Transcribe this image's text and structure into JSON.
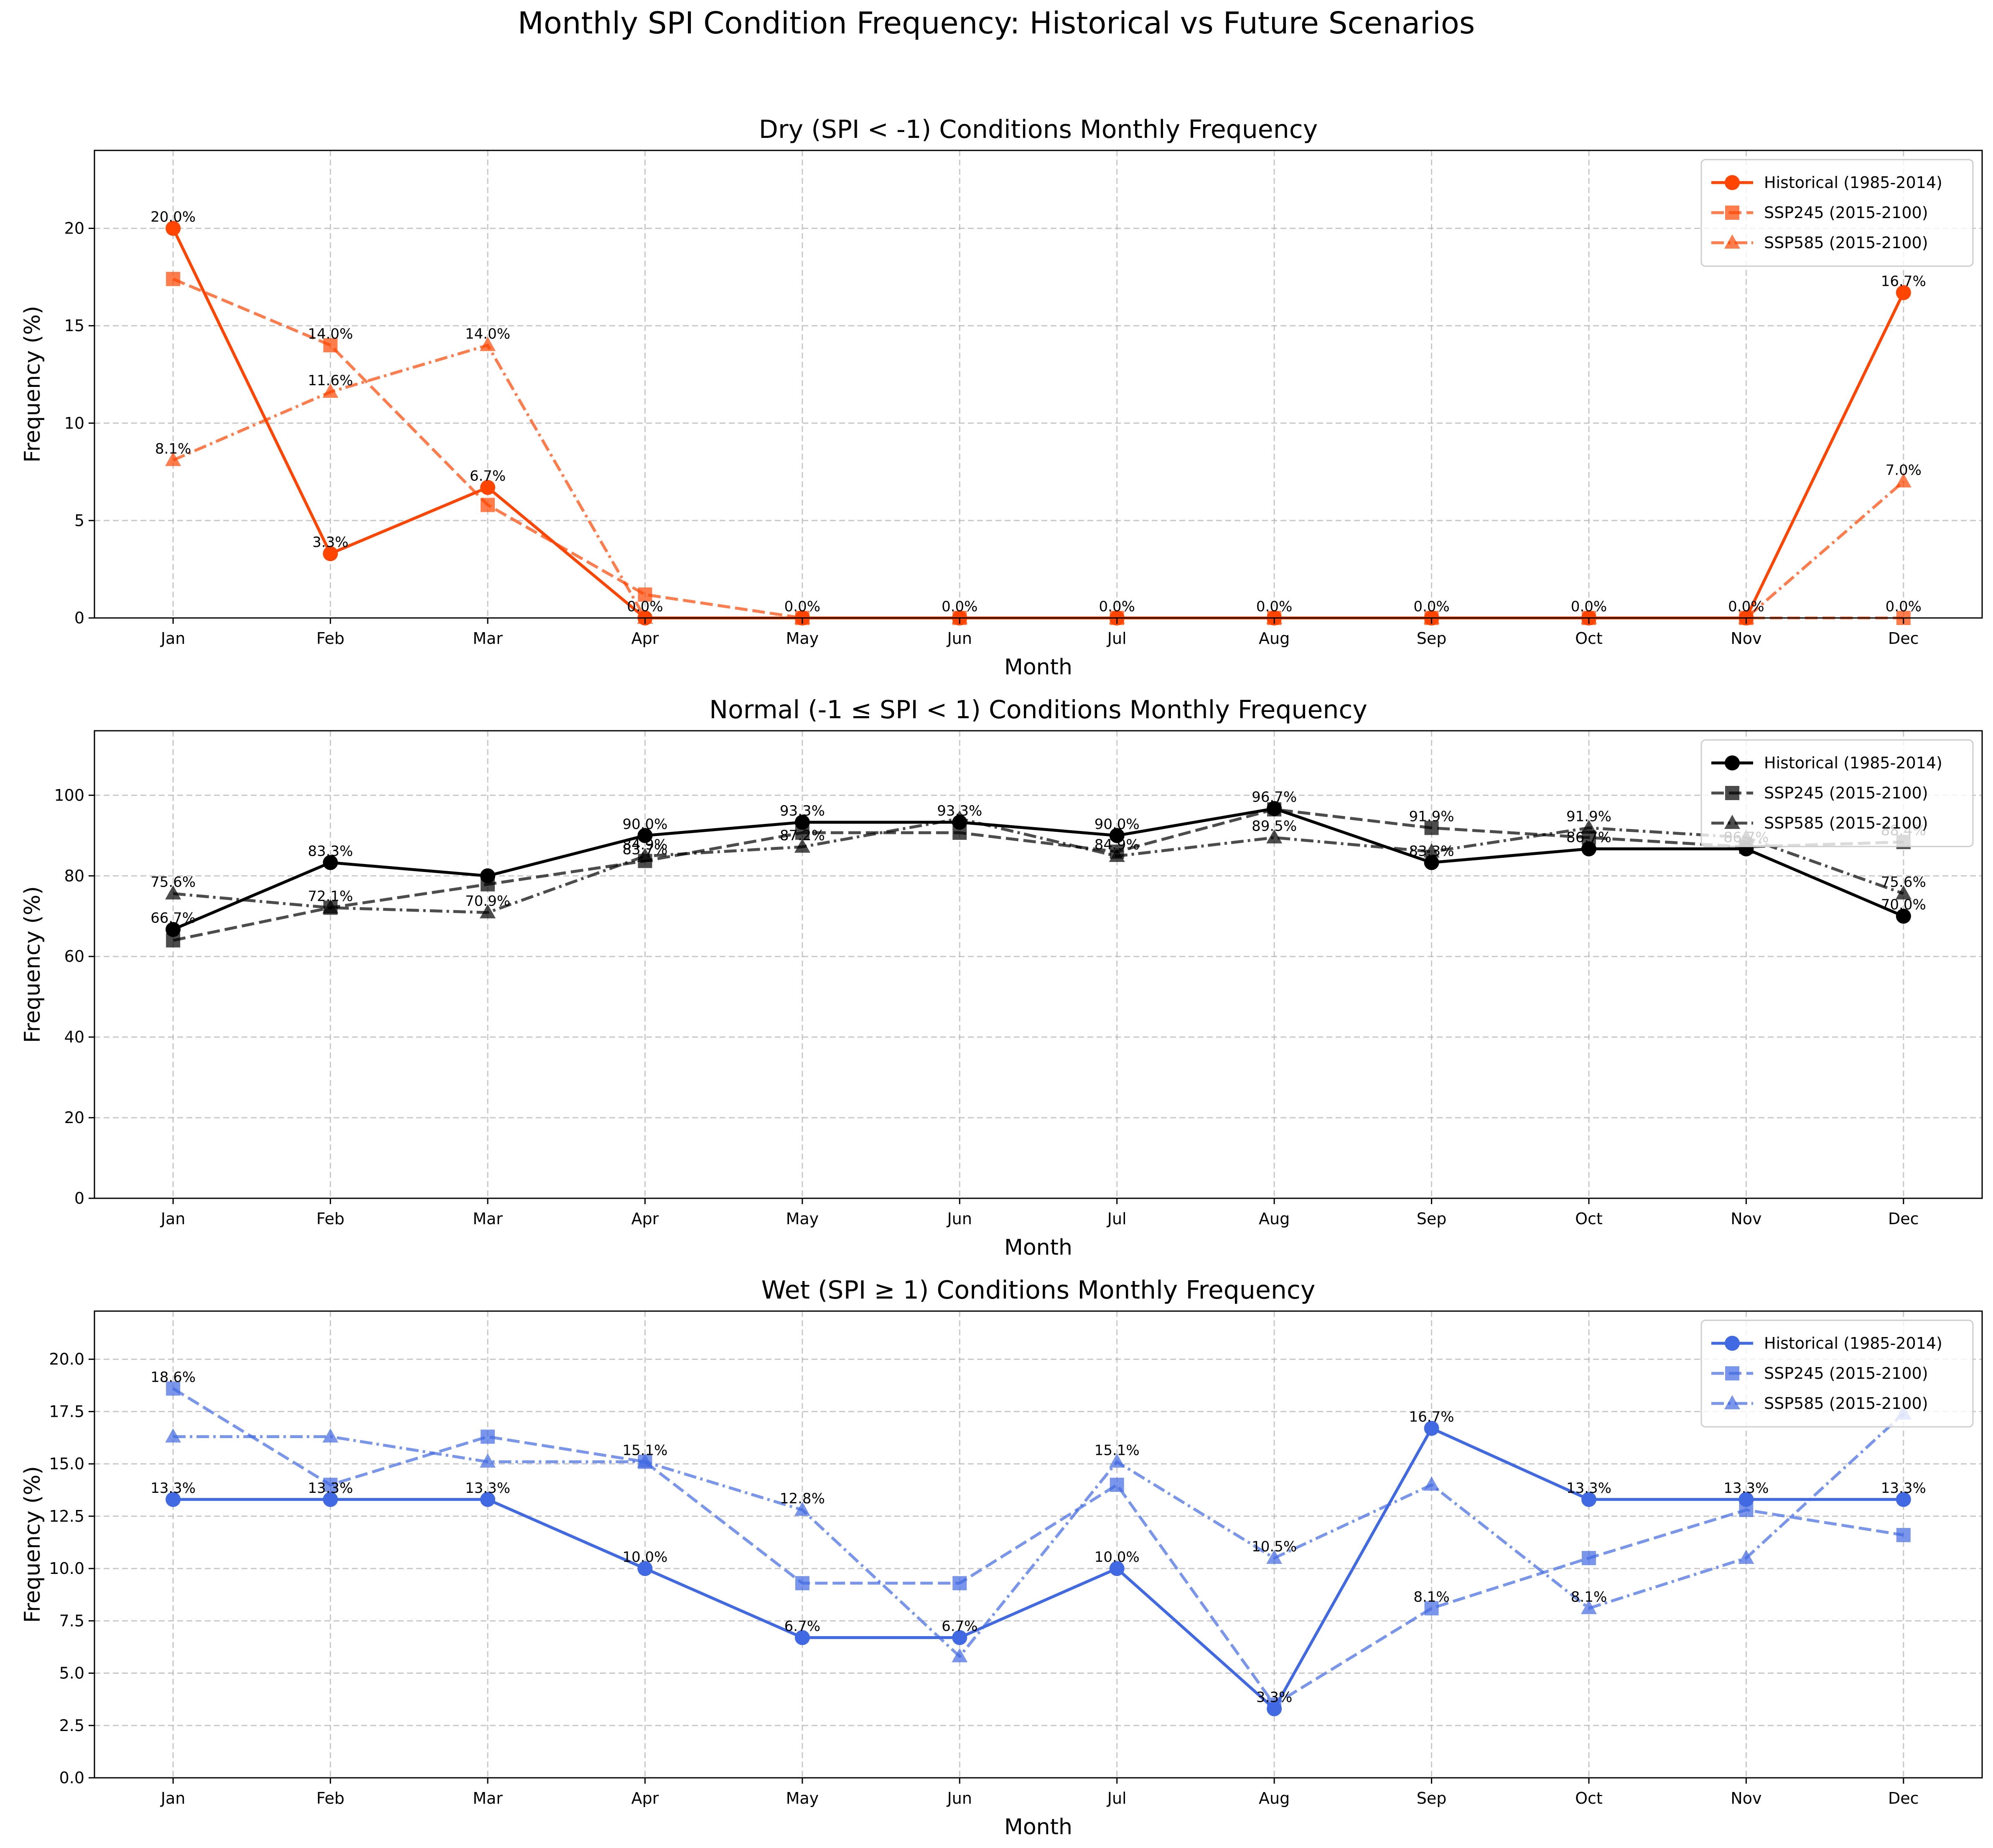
{
  "figure_title": "Monthly SPI Condition Frequency: Historical vs Future Scenarios",
  "legend_labels": [
    "Historical (1985-2014)",
    "SSP245 (2015-2100)",
    "SSP585 (2015-2100)"
  ],
  "chart_data": [
    {
      "type": "line",
      "title": "Dry (SPI < -1) Conditions Monthly Frequency",
      "xlabel": "Month",
      "ylabel": "Frequency (%)",
      "categories": [
        "Jan",
        "Feb",
        "Mar",
        "Apr",
        "May",
        "Jun",
        "Jul",
        "Aug",
        "Sep",
        "Oct",
        "Nov",
        "Dec"
      ],
      "ylim": [
        0,
        24
      ],
      "yticks": [
        0,
        5,
        10,
        15,
        20
      ],
      "ytick_labels": [
        "0",
        "5",
        "10",
        "15",
        "20"
      ],
      "grid": true,
      "legend_position": "top-right",
      "color": "#ff4500",
      "series": [
        {
          "name": "Historical (1985-2014)",
          "marker": "circle",
          "dash": "solid",
          "alpha": 1.0,
          "values": [
            20.0,
            3.3,
            6.7,
            0.0,
            0.0,
            0.0,
            0.0,
            0.0,
            0.0,
            0.0,
            0.0,
            16.7
          ]
        },
        {
          "name": "SSP245 (2015-2100)",
          "marker": "square",
          "dash": "dashed",
          "alpha": 0.7,
          "values": [
            17.4,
            14.0,
            5.8,
            1.2,
            0.0,
            0.0,
            0.0,
            0.0,
            0.0,
            0.0,
            0.0,
            0.0
          ]
        },
        {
          "name": "SSP585 (2015-2100)",
          "marker": "triangle",
          "dash": "dashdot",
          "alpha": 0.7,
          "values": [
            8.1,
            11.6,
            14.0,
            0.0,
            0.0,
            0.0,
            0.0,
            0.0,
            0.0,
            0.0,
            0.0,
            7.0
          ]
        }
      ],
      "annotations": [
        {
          "month": "Jan",
          "value": 20.0,
          "text": "20.0%"
        },
        {
          "month": "Jan",
          "value": 8.1,
          "text": "8.1%"
        },
        {
          "month": "Feb",
          "value": 14.0,
          "text": "14.0%"
        },
        {
          "month": "Feb",
          "value": 11.6,
          "text": "11.6%"
        },
        {
          "month": "Feb",
          "value": 3.3,
          "text": "3.3%"
        },
        {
          "month": "Mar",
          "value": 14.0,
          "text": "14.0%"
        },
        {
          "month": "Mar",
          "value": 6.7,
          "text": "6.7%"
        },
        {
          "month": "Apr",
          "value": 0.0,
          "text": "0.0%"
        },
        {
          "month": "May",
          "value": 0.0,
          "text": "0.0%"
        },
        {
          "month": "Jun",
          "value": 0.0,
          "text": "0.0%"
        },
        {
          "month": "Jul",
          "value": 0.0,
          "text": "0.0%"
        },
        {
          "month": "Aug",
          "value": 0.0,
          "text": "0.0%"
        },
        {
          "month": "Sep",
          "value": 0.0,
          "text": "0.0%"
        },
        {
          "month": "Oct",
          "value": 0.0,
          "text": "0.0%"
        },
        {
          "month": "Nov",
          "value": 0.0,
          "text": "0.0%"
        },
        {
          "month": "Dec",
          "value": 16.7,
          "text": "16.7%"
        },
        {
          "month": "Dec",
          "value": 7.0,
          "text": "7.0%"
        },
        {
          "month": "Dec",
          "value": 0.0,
          "text": "0.0%"
        }
      ]
    },
    {
      "type": "line",
      "title": "Normal (-1 ≤ SPI < 1) Conditions Monthly Frequency",
      "xlabel": "Month",
      "ylabel": "Frequency (%)",
      "categories": [
        "Jan",
        "Feb",
        "Mar",
        "Apr",
        "May",
        "Jun",
        "Jul",
        "Aug",
        "Sep",
        "Oct",
        "Nov",
        "Dec"
      ],
      "ylim": [
        0,
        116
      ],
      "yticks": [
        0,
        20,
        40,
        60,
        80,
        100
      ],
      "ytick_labels": [
        "0",
        "20",
        "40",
        "60",
        "80",
        "100"
      ],
      "grid": true,
      "legend_position": "top-right",
      "color": "#000000",
      "series": [
        {
          "name": "Historical (1985-2014)",
          "marker": "circle",
          "dash": "solid",
          "alpha": 1.0,
          "values": [
            66.7,
            83.3,
            80.0,
            90.0,
            93.3,
            93.3,
            90.0,
            96.7,
            83.3,
            86.7,
            86.7,
            70.0
          ]
        },
        {
          "name": "SSP245 (2015-2100)",
          "marker": "square",
          "dash": "dashed",
          "alpha": 0.7,
          "values": [
            64.0,
            72.1,
            77.9,
            83.7,
            90.7,
            90.7,
            86.0,
            96.5,
            91.9,
            89.5,
            87.2,
            88.4
          ]
        },
        {
          "name": "SSP585 (2015-2100)",
          "marker": "triangle",
          "dash": "dashdot",
          "alpha": 0.7,
          "values": [
            75.6,
            72.1,
            70.9,
            84.9,
            87.2,
            94.2,
            84.9,
            89.5,
            86.0,
            91.9,
            89.5,
            75.6
          ]
        }
      ],
      "annotations": [
        {
          "month": "Jan",
          "value": 75.6,
          "text": "75.6%"
        },
        {
          "month": "Jan",
          "value": 66.7,
          "text": "66.7%"
        },
        {
          "month": "Feb",
          "value": 83.3,
          "text": "83.3%"
        },
        {
          "month": "Feb",
          "value": 72.1,
          "text": "72.1%"
        },
        {
          "month": "Mar",
          "value": 70.9,
          "text": "70.9%"
        },
        {
          "month": "Apr",
          "value": 90.0,
          "text": "90.0%"
        },
        {
          "month": "Apr",
          "value": 84.9,
          "text": "84.9%"
        },
        {
          "month": "Apr",
          "value": 83.7,
          "text": "83.7%"
        },
        {
          "month": "May",
          "value": 93.3,
          "text": "93.3%"
        },
        {
          "month": "May",
          "value": 87.2,
          "text": "87.2%"
        },
        {
          "month": "Jun",
          "value": 93.3,
          "text": "93.3%"
        },
        {
          "month": "Jul",
          "value": 90.0,
          "text": "90.0%"
        },
        {
          "month": "Jul",
          "value": 84.9,
          "text": "84.9%"
        },
        {
          "month": "Aug",
          "value": 96.7,
          "text": "96.7%"
        },
        {
          "month": "Aug",
          "value": 89.5,
          "text": "89.5%"
        },
        {
          "month": "Sep",
          "value": 91.9,
          "text": "91.9%"
        },
        {
          "month": "Sep",
          "value": 83.3,
          "text": "83.3%"
        },
        {
          "month": "Oct",
          "value": 91.9,
          "text": "91.9%"
        },
        {
          "month": "Oct",
          "value": 86.7,
          "text": "86.7%"
        },
        {
          "month": "Nov",
          "value": 86.7,
          "text": "86.7%"
        },
        {
          "month": "Dec",
          "value": 88.4,
          "text": "88.4%"
        },
        {
          "month": "Dec",
          "value": 75.6,
          "text": "75.6%"
        },
        {
          "month": "Dec",
          "value": 70.0,
          "text": "70.0%"
        }
      ]
    },
    {
      "type": "line",
      "title": "Wet (SPI ≥ 1) Conditions Monthly Frequency",
      "xlabel": "Month",
      "ylabel": "Frequency (%)",
      "categories": [
        "Jan",
        "Feb",
        "Mar",
        "Apr",
        "May",
        "Jun",
        "Jul",
        "Aug",
        "Sep",
        "Oct",
        "Nov",
        "Dec"
      ],
      "ylim": [
        0,
        22.3
      ],
      "yticks": [
        0,
        2.5,
        5,
        7.5,
        10,
        12.5,
        15,
        17.5,
        20
      ],
      "ytick_labels": [
        "0.0",
        "2.5",
        "5.0",
        "7.5",
        "10.0",
        "12.5",
        "15.0",
        "17.5",
        "20.0"
      ],
      "grid": true,
      "legend_position": "top-right",
      "color": "#4169e1",
      "series": [
        {
          "name": "Historical (1985-2014)",
          "marker": "circle",
          "dash": "solid",
          "alpha": 1.0,
          "values": [
            13.3,
            13.3,
            13.3,
            10.0,
            6.7,
            6.7,
            10.0,
            3.3,
            16.7,
            13.3,
            13.3,
            13.3
          ]
        },
        {
          "name": "SSP245 (2015-2100)",
          "marker": "square",
          "dash": "dashed",
          "alpha": 0.7,
          "values": [
            18.6,
            14.0,
            16.3,
            15.1,
            9.3,
            9.3,
            14.0,
            3.5,
            8.1,
            10.5,
            12.8,
            11.6
          ]
        },
        {
          "name": "SSP585 (2015-2100)",
          "marker": "triangle",
          "dash": "dashdot",
          "alpha": 0.7,
          "values": [
            16.3,
            16.3,
            15.1,
            15.1,
            12.8,
            5.8,
            15.1,
            10.5,
            14.0,
            8.1,
            10.5,
            17.4
          ]
        }
      ],
      "annotations": [
        {
          "month": "Jan",
          "value": 18.6,
          "text": "18.6%"
        },
        {
          "month": "Jan",
          "value": 13.3,
          "text": "13.3%"
        },
        {
          "month": "Feb",
          "value": 13.3,
          "text": "13.3%"
        },
        {
          "month": "Mar",
          "value": 13.3,
          "text": "13.3%"
        },
        {
          "month": "Apr",
          "value": 15.1,
          "text": "15.1%"
        },
        {
          "month": "Apr",
          "value": 10.0,
          "text": "10.0%"
        },
        {
          "month": "May",
          "value": 12.8,
          "text": "12.8%"
        },
        {
          "month": "May",
          "value": 6.7,
          "text": "6.7%"
        },
        {
          "month": "Jun",
          "value": 6.7,
          "text": "6.7%"
        },
        {
          "month": "Jul",
          "value": 15.1,
          "text": "15.1%"
        },
        {
          "month": "Jul",
          "value": 10.0,
          "text": "10.0%"
        },
        {
          "month": "Aug",
          "value": 10.5,
          "text": "10.5%"
        },
        {
          "month": "Aug",
          "value": 3.3,
          "text": "3.3%"
        },
        {
          "month": "Sep",
          "value": 16.7,
          "text": "16.7%"
        },
        {
          "month": "Sep",
          "value": 8.1,
          "text": "8.1%"
        },
        {
          "month": "Oct",
          "value": 13.3,
          "text": "13.3%"
        },
        {
          "month": "Oct",
          "value": 8.1,
          "text": "8.1%"
        },
        {
          "month": "Nov",
          "value": 13.3,
          "text": "13.3%"
        },
        {
          "month": "Dec",
          "value": 13.3,
          "text": "13.3%"
        }
      ]
    }
  ]
}
